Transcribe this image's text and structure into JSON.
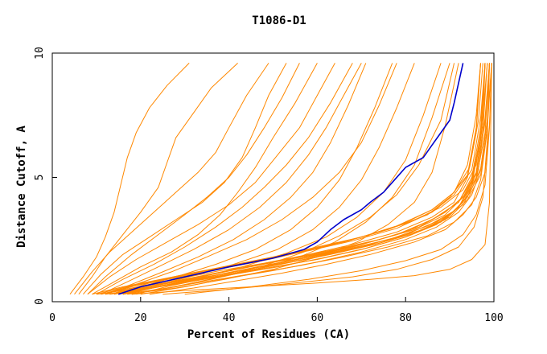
{
  "chart_data": {
    "type": "line",
    "title": "T1086-D1",
    "xlabel": "Percent of Residues (CA)",
    "ylabel": "Distance Cutoff, A",
    "xlim": [
      0,
      100
    ],
    "ylim": [
      0,
      10
    ],
    "x_ticks": [
      0,
      20,
      40,
      60,
      80,
      100
    ],
    "y_ticks": [
      0,
      5,
      10
    ],
    "grid": false,
    "legend": "none",
    "colors": {
      "highlight": "#0000cc",
      "others": "#ff8800"
    },
    "highlight_series": {
      "x": [
        15,
        20,
        30,
        40,
        50,
        57,
        60,
        63,
        66,
        70,
        72,
        75,
        77,
        80,
        84,
        86,
        88,
        90,
        91,
        92,
        93
      ],
      "y": [
        0.3,
        0.6,
        1.0,
        1.4,
        1.75,
        2.1,
        2.4,
        2.9,
        3.3,
        3.7,
        4.0,
        4.4,
        4.8,
        5.4,
        5.8,
        6.3,
        6.8,
        7.3,
        8.0,
        8.8,
        9.6
      ]
    },
    "series": [
      {
        "x": [
          12,
          20,
          30,
          40,
          50,
          60,
          70,
          80,
          88,
          92,
          95,
          97,
          98
        ],
        "y": [
          0.3,
          0.5,
          0.8,
          1.1,
          1.4,
          1.7,
          2.1,
          2.6,
          3.2,
          3.8,
          4.8,
          6.5,
          9.6
        ]
      },
      {
        "x": [
          13,
          20,
          30,
          40,
          50,
          60,
          70,
          80,
          87,
          92,
          95,
          97,
          98
        ],
        "y": [
          0.3,
          0.6,
          0.9,
          1.25,
          1.6,
          1.9,
          2.3,
          2.8,
          3.4,
          4.0,
          5.0,
          7.0,
          9.6
        ]
      },
      {
        "x": [
          14,
          20,
          30,
          40,
          50,
          60,
          70,
          80,
          88,
          93,
          96,
          98,
          99
        ],
        "y": [
          0.3,
          0.55,
          0.85,
          1.15,
          1.5,
          1.85,
          2.2,
          2.7,
          3.3,
          3.9,
          4.9,
          6.8,
          9.6
        ]
      },
      {
        "x": [
          15,
          22,
          32,
          42,
          52,
          62,
          72,
          82,
          89,
          93,
          96,
          98,
          99
        ],
        "y": [
          0.3,
          0.6,
          0.95,
          1.3,
          1.65,
          2.0,
          2.4,
          2.9,
          3.5,
          4.2,
          5.2,
          7.2,
          9.6
        ]
      },
      {
        "x": [
          16,
          24,
          34,
          44,
          54,
          64,
          74,
          83,
          90,
          94,
          97,
          98.5,
          99.5
        ],
        "y": [
          0.3,
          0.6,
          0.95,
          1.3,
          1.6,
          1.95,
          2.35,
          2.85,
          3.4,
          4.1,
          5.1,
          7.0,
          9.6
        ]
      },
      {
        "x": [
          11,
          18,
          28,
          38,
          48,
          58,
          68,
          78,
          86,
          91,
          94,
          96,
          97
        ],
        "y": [
          0.3,
          0.55,
          0.9,
          1.25,
          1.55,
          1.9,
          2.3,
          2.8,
          3.4,
          4.0,
          5.0,
          6.8,
          9.6
        ]
      },
      {
        "x": [
          10,
          18,
          28,
          38,
          48,
          58,
          68,
          78,
          86,
          91,
          95,
          97,
          98
        ],
        "y": [
          0.3,
          0.65,
          1.0,
          1.35,
          1.7,
          2.05,
          2.45,
          2.95,
          3.6,
          4.3,
          5.3,
          7.4,
          9.6
        ]
      },
      {
        "x": [
          17,
          25,
          35,
          45,
          55,
          65,
          75,
          84,
          90,
          94,
          96,
          97.5,
          98
        ],
        "y": [
          0.3,
          0.65,
          1.0,
          1.35,
          1.7,
          2.05,
          2.45,
          2.9,
          3.5,
          4.2,
          5.2,
          7.2,
          9.6
        ]
      },
      {
        "x": [
          12,
          20,
          30,
          40,
          50,
          60,
          70,
          79,
          86,
          91,
          94,
          96,
          97
        ],
        "y": [
          0.3,
          0.7,
          1.1,
          1.45,
          1.8,
          2.2,
          2.6,
          3.1,
          3.7,
          4.4,
          5.5,
          7.5,
          9.6
        ]
      },
      {
        "x": [
          18,
          26,
          36,
          46,
          56,
          66,
          76,
          85,
          91,
          95,
          97,
          98.5,
          99
        ],
        "y": [
          0.3,
          0.55,
          0.85,
          1.15,
          1.45,
          1.8,
          2.2,
          2.65,
          3.2,
          3.9,
          4.9,
          6.9,
          9.6
        ]
      },
      {
        "x": [
          20,
          30,
          40,
          50,
          60,
          70,
          80,
          87,
          92,
          95,
          97,
          98.5,
          99
        ],
        "y": [
          0.3,
          0.6,
          0.95,
          1.25,
          1.6,
          2.0,
          2.5,
          3.0,
          3.6,
          4.3,
          5.3,
          7.3,
          9.6
        ]
      },
      {
        "x": [
          9,
          16,
          26,
          36,
          46,
          56,
          66,
          76,
          85,
          90,
          94,
          96,
          97
        ],
        "y": [
          0.3,
          0.6,
          0.95,
          1.3,
          1.65,
          2.0,
          2.4,
          2.9,
          3.5,
          4.2,
          5.1,
          7.0,
          9.6
        ]
      },
      {
        "x": [
          14,
          22,
          32,
          42,
          52,
          62,
          72,
          81,
          88,
          93,
          96,
          97.5,
          98.5
        ],
        "y": [
          0.3,
          0.75,
          1.15,
          1.5,
          1.85,
          2.25,
          2.7,
          3.2,
          3.8,
          4.5,
          5.5,
          7.5,
          9.6
        ]
      },
      {
        "x": [
          13,
          21,
          31,
          41,
          51,
          61,
          71,
          80,
          87,
          92,
          95,
          97,
          98
        ],
        "y": [
          0.3,
          0.5,
          0.8,
          1.1,
          1.4,
          1.75,
          2.15,
          2.6,
          3.1,
          3.8,
          4.7,
          6.6,
          9.6
        ]
      },
      {
        "x": [
          16,
          24,
          34,
          44,
          54,
          64,
          74,
          83,
          89,
          93.5,
          96.5,
          98,
          99
        ],
        "y": [
          0.3,
          0.7,
          1.05,
          1.4,
          1.75,
          2.1,
          2.5,
          3.0,
          3.6,
          4.3,
          5.3,
          7.4,
          9.6
        ]
      },
      {
        "x": [
          22,
          32,
          42,
          52,
          62,
          72,
          82,
          89,
          93,
          96,
          98,
          99,
          99.5
        ],
        "y": [
          0.3,
          0.55,
          0.85,
          1.15,
          1.5,
          1.9,
          2.4,
          2.9,
          3.5,
          4.2,
          5.2,
          7.1,
          9.6
        ]
      },
      {
        "x": [
          11,
          19,
          29,
          39,
          49,
          59,
          69,
          78,
          86,
          91,
          94.5,
          96.5,
          97.5
        ],
        "y": [
          0.3,
          0.65,
          1.0,
          1.35,
          1.7,
          2.1,
          2.55,
          3.05,
          3.7,
          4.4,
          5.4,
          7.3,
          9.6
        ]
      },
      {
        "x": [
          15,
          23,
          33,
          43,
          53,
          63,
          73,
          82,
          89,
          93,
          96,
          97.5,
          98.5
        ],
        "y": [
          0.3,
          0.6,
          0.9,
          1.2,
          1.55,
          1.9,
          2.3,
          2.75,
          3.3,
          4.0,
          5.0,
          6.9,
          9.6
        ]
      },
      {
        "x": [
          10,
          18,
          28,
          38,
          48,
          58,
          68,
          78,
          86,
          92,
          95,
          97,
          98
        ],
        "y": [
          0.3,
          0.5,
          0.8,
          1.1,
          1.45,
          1.8,
          2.2,
          2.7,
          3.3,
          4.0,
          4.9,
          6.7,
          9.6
        ]
      },
      {
        "x": [
          19,
          27,
          37,
          47,
          57,
          67,
          77,
          85,
          91,
          94.5,
          97,
          98.5,
          99.5
        ],
        "y": [
          0.3,
          0.65,
          1.0,
          1.35,
          1.7,
          2.1,
          2.55,
          3.05,
          3.65,
          4.35,
          5.35,
          7.3,
          9.6
        ]
      },
      {
        "x": [
          18,
          30,
          45,
          60,
          72,
          82,
          90,
          95,
          98,
          99,
          99.5
        ],
        "y": [
          0.3,
          0.45,
          0.6,
          0.75,
          0.9,
          1.05,
          1.3,
          1.7,
          2.3,
          4.0,
          9.6
        ]
      },
      {
        "x": [
          25,
          40,
          55,
          68,
          78,
          86,
          92,
          95.5,
          97.5,
          98.5,
          99
        ],
        "y": [
          0.3,
          0.5,
          0.75,
          1.0,
          1.3,
          1.7,
          2.2,
          3.0,
          4.2,
          6.5,
          9.6
        ]
      },
      {
        "x": [
          30,
          45,
          58,
          70,
          80,
          88,
          93,
          96,
          98,
          99,
          99.5
        ],
        "y": [
          0.3,
          0.6,
          0.9,
          1.25,
          1.65,
          2.1,
          2.7,
          3.5,
          4.7,
          7.0,
          9.6
        ]
      },
      {
        "x": [
          4,
          7,
          10,
          12,
          14,
          15.5,
          17,
          19,
          22,
          26,
          31
        ],
        "y": [
          0.3,
          1.0,
          1.8,
          2.6,
          3.6,
          4.7,
          5.8,
          6.8,
          7.8,
          8.7,
          9.6
        ]
      },
      {
        "x": [
          6,
          9,
          12,
          16,
          20,
          24,
          26,
          28,
          32,
          36,
          42
        ],
        "y": [
          0.3,
          1.0,
          1.8,
          2.7,
          3.6,
          4.6,
          5.6,
          6.6,
          7.6,
          8.6,
          9.6
        ]
      },
      {
        "x": [
          5,
          9,
          13,
          18,
          23,
          28,
          33,
          37,
          40,
          44,
          49
        ],
        "y": [
          0.3,
          1.2,
          2.0,
          2.8,
          3.6,
          4.4,
          5.2,
          6.0,
          7.0,
          8.3,
          9.6
        ]
      },
      {
        "x": [
          8,
          12,
          18,
          24,
          30,
          35,
          40,
          44,
          48,
          52,
          56
        ],
        "y": [
          0.3,
          1.0,
          1.9,
          2.7,
          3.5,
          4.2,
          5.0,
          5.9,
          7.0,
          8.2,
          9.6
        ]
      },
      {
        "x": [
          9,
          14,
          20,
          27,
          33,
          38,
          42,
          46,
          50,
          55,
          60
        ],
        "y": [
          0.3,
          0.8,
          1.4,
          2.0,
          2.7,
          3.5,
          4.4,
          5.4,
          6.6,
          8.0,
          9.6
        ]
      },
      {
        "x": [
          10,
          16,
          23,
          30,
          37,
          43,
          48,
          53,
          58,
          63,
          68
        ],
        "y": [
          0.3,
          0.9,
          1.5,
          2.2,
          3.0,
          3.8,
          4.6,
          5.5,
          6.6,
          8.0,
          9.6
        ]
      },
      {
        "x": [
          12,
          18,
          25,
          33,
          41,
          48,
          54,
          59,
          63,
          67,
          71
        ],
        "y": [
          0.3,
          0.7,
          1.2,
          1.8,
          2.5,
          3.3,
          4.2,
          5.2,
          6.4,
          7.9,
          9.6
        ]
      },
      {
        "x": [
          13,
          20,
          28,
          37,
          46,
          54,
          60,
          65,
          69,
          73,
          77
        ],
        "y": [
          0.3,
          0.6,
          1.0,
          1.5,
          2.1,
          2.9,
          3.8,
          4.9,
          6.2,
          7.8,
          9.6
        ]
      },
      {
        "x": [
          14,
          22,
          31,
          41,
          51,
          59,
          65,
          70,
          74,
          78,
          82
        ],
        "y": [
          0.3,
          0.6,
          1.0,
          1.5,
          2.1,
          2.9,
          3.8,
          4.9,
          6.2,
          7.8,
          9.6
        ]
      },
      {
        "x": [
          7,
          11,
          16,
          22,
          28,
          34,
          39,
          43,
          46,
          49,
          53
        ],
        "y": [
          0.3,
          1.1,
          1.9,
          2.6,
          3.3,
          4.0,
          4.8,
          5.8,
          7.0,
          8.3,
          9.6
        ]
      },
      {
        "x": [
          11,
          17,
          24,
          32,
          40,
          47,
          53,
          58,
          62,
          66,
          70
        ],
        "y": [
          0.3,
          0.8,
          1.4,
          2.1,
          2.9,
          3.8,
          4.8,
          5.9,
          7.0,
          8.3,
          9.6
        ]
      },
      {
        "x": [
          15,
          24,
          33,
          43,
          53,
          62,
          69,
          75,
          80,
          84,
          88
        ],
        "y": [
          0.3,
          0.6,
          0.95,
          1.4,
          1.95,
          2.6,
          3.4,
          4.4,
          5.7,
          7.5,
          9.6
        ]
      },
      {
        "x": [
          16,
          26,
          36,
          46,
          56,
          64,
          71,
          77,
          82,
          86,
          90
        ],
        "y": [
          0.3,
          0.55,
          0.9,
          1.3,
          1.8,
          2.4,
          3.2,
          4.2,
          5.5,
          7.4,
          9.6
        ]
      },
      {
        "x": [
          17,
          28,
          39,
          50,
          60,
          69,
          76,
          82,
          86,
          89,
          92
        ],
        "y": [
          0.3,
          0.55,
          0.9,
          1.3,
          1.8,
          2.4,
          3.1,
          4.0,
          5.2,
          7.1,
          9.6
        ]
      },
      {
        "x": [
          8,
          13,
          19,
          26,
          33,
          40,
          46,
          51,
          56,
          60,
          64
        ],
        "y": [
          0.3,
          1.0,
          1.7,
          2.4,
          3.1,
          3.9,
          4.8,
          5.9,
          7.0,
          8.3,
          9.6
        ]
      },
      {
        "x": [
          12,
          19,
          27,
          35,
          44,
          52,
          59,
          65,
          70,
          74,
          78
        ],
        "y": [
          0.3,
          0.7,
          1.2,
          1.8,
          2.5,
          3.3,
          4.2,
          5.2,
          6.4,
          7.9,
          9.6
        ]
      },
      {
        "x": [
          18,
          28,
          38,
          48,
          57,
          65,
          72,
          78,
          83,
          88,
          91
        ],
        "y": [
          0.3,
          0.6,
          1.0,
          1.45,
          2.0,
          2.65,
          3.4,
          4.3,
          5.5,
          7.3,
          9.6
        ]
      }
    ]
  }
}
